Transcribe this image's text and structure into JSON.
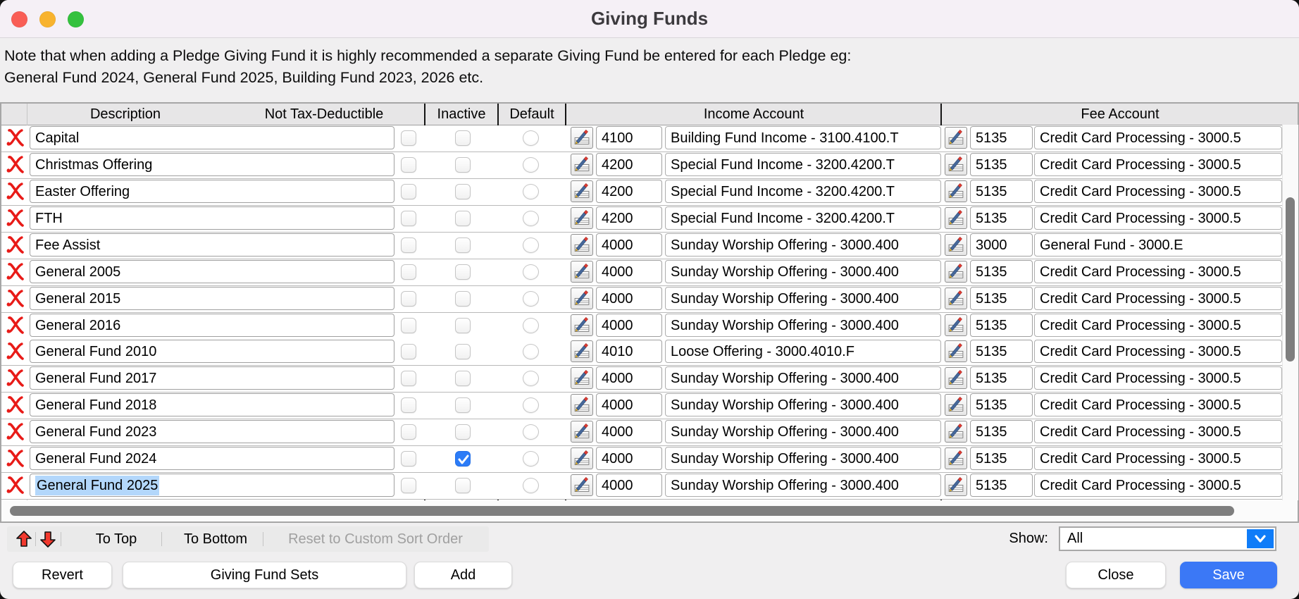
{
  "window": {
    "title": "Giving Funds"
  },
  "note": {
    "line1": "Note that when adding a Pledge Giving Fund it is highly recommended a separate Giving Fund be entered for each Pledge eg:",
    "line2": "General Fund 2024, General Fund 2025, Building Fund 2023, 2026 etc."
  },
  "table": {
    "headers": {
      "description": "Description",
      "not_tax_deductible": "Not Tax-Deductible",
      "inactive": "Inactive",
      "default": "Default",
      "income_account": "Income Account",
      "fee_account": "Fee Account"
    },
    "rows": [
      {
        "description": "Capital",
        "not_tax_deductible": false,
        "inactive": false,
        "default": false,
        "selected": false,
        "income_code": "4100",
        "income_name": "Building Fund Income - 3100.4100.T",
        "fee_code": "5135",
        "fee_name": "Credit Card Processing - 3000.5"
      },
      {
        "description": "Christmas Offering",
        "not_tax_deductible": false,
        "inactive": false,
        "default": false,
        "selected": false,
        "income_code": "4200",
        "income_name": "Special Fund Income - 3200.4200.T",
        "fee_code": "5135",
        "fee_name": "Credit Card Processing - 3000.5"
      },
      {
        "description": "Easter Offering",
        "not_tax_deductible": false,
        "inactive": false,
        "default": false,
        "selected": false,
        "income_code": "4200",
        "income_name": "Special Fund Income - 3200.4200.T",
        "fee_code": "5135",
        "fee_name": "Credit Card Processing - 3000.5"
      },
      {
        "description": "FTH",
        "not_tax_deductible": false,
        "inactive": false,
        "default": false,
        "selected": false,
        "income_code": "4200",
        "income_name": "Special Fund Income - 3200.4200.T",
        "fee_code": "5135",
        "fee_name": "Credit Card Processing - 3000.5"
      },
      {
        "description": "Fee Assist",
        "not_tax_deductible": false,
        "inactive": false,
        "default": false,
        "selected": false,
        "income_code": "4000",
        "income_name": "Sunday Worship Offering - 3000.400",
        "fee_code": "3000",
        "fee_name": "General Fund - 3000.E"
      },
      {
        "description": "General 2005",
        "not_tax_deductible": false,
        "inactive": false,
        "default": false,
        "selected": false,
        "income_code": "4000",
        "income_name": "Sunday Worship Offering - 3000.400",
        "fee_code": "5135",
        "fee_name": "Credit Card Processing - 3000.5"
      },
      {
        "description": "General 2015",
        "not_tax_deductible": false,
        "inactive": false,
        "default": false,
        "selected": false,
        "income_code": "4000",
        "income_name": "Sunday Worship Offering - 3000.400",
        "fee_code": "5135",
        "fee_name": "Credit Card Processing - 3000.5"
      },
      {
        "description": "General 2016",
        "not_tax_deductible": false,
        "inactive": false,
        "default": false,
        "selected": false,
        "income_code": "4000",
        "income_name": "Sunday Worship Offering - 3000.400",
        "fee_code": "5135",
        "fee_name": "Credit Card Processing - 3000.5"
      },
      {
        "description": "General Fund 2010",
        "not_tax_deductible": false,
        "inactive": false,
        "default": false,
        "selected": false,
        "income_code": "4010",
        "income_name": "Loose Offering - 3000.4010.F",
        "fee_code": "5135",
        "fee_name": "Credit Card Processing - 3000.5"
      },
      {
        "description": "General Fund 2017",
        "not_tax_deductible": false,
        "inactive": false,
        "default": false,
        "selected": false,
        "income_code": "4000",
        "income_name": "Sunday Worship Offering - 3000.400",
        "fee_code": "5135",
        "fee_name": "Credit Card Processing - 3000.5"
      },
      {
        "description": "General Fund 2018",
        "not_tax_deductible": false,
        "inactive": false,
        "default": false,
        "selected": false,
        "income_code": "4000",
        "income_name": "Sunday Worship Offering - 3000.400",
        "fee_code": "5135",
        "fee_name": "Credit Card Processing - 3000.5"
      },
      {
        "description": "General Fund 2023",
        "not_tax_deductible": false,
        "inactive": false,
        "default": false,
        "selected": false,
        "income_code": "4000",
        "income_name": "Sunday Worship Offering - 3000.400",
        "fee_code": "5135",
        "fee_name": "Credit Card Processing - 3000.5"
      },
      {
        "description": "General Fund 2024",
        "not_tax_deductible": false,
        "inactive": true,
        "default": false,
        "selected": false,
        "income_code": "4000",
        "income_name": "Sunday Worship Offering - 3000.400",
        "fee_code": "5135",
        "fee_name": "Credit Card Processing - 3000.5"
      },
      {
        "description": "General Fund 2025",
        "not_tax_deductible": false,
        "inactive": false,
        "default": false,
        "selected": true,
        "income_code": "4000",
        "income_name": "Sunday Worship Offering - 3000.400",
        "fee_code": "5135",
        "fee_name": "Credit Card Processing - 3000.5"
      }
    ]
  },
  "toolbar": {
    "to_top": "To Top",
    "to_bottom": "To Bottom",
    "reset": "Reset to Custom Sort Order",
    "show_label": "Show:",
    "show_value": "All"
  },
  "buttons": {
    "revert": "Revert",
    "giving_fund_sets": "Giving Fund Sets",
    "add": "Add",
    "close": "Close",
    "save": "Save"
  },
  "icons": {
    "delete_row": "red-script-x-icon",
    "account_picker": "pencil-on-sheet-icon",
    "move_up": "red-up-arrow-icon",
    "move_down": "red-down-arrow-icon",
    "dropdown": "chevron-down-icon"
  },
  "colors": {
    "accent_blue": "#3b78f6",
    "dropdown_blue": "#0f7cf8",
    "checkbox_checked_blue": "#2c7cf7",
    "selection_highlight": "#b3d7fb",
    "delete_red": "#e81a17",
    "traffic_red": "#f95e56",
    "traffic_yellow": "#f8b32e",
    "traffic_green": "#34c13e"
  }
}
